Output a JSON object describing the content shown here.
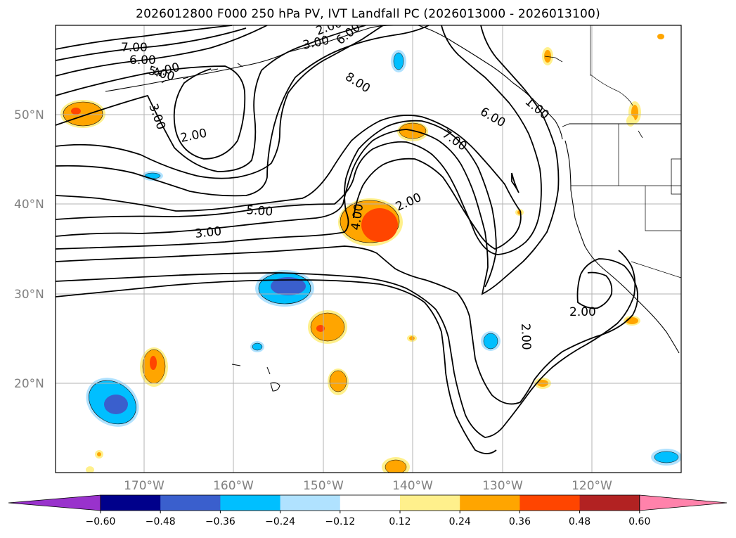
{
  "title": "2026012800 F000 250 hPa PV, IVT Landfall PC (2026013000 - 2026013100)",
  "map": {
    "lat_labels": [
      "50°N",
      "40°N",
      "30°N",
      "20°N"
    ],
    "lon_labels": [
      "170°W",
      "160°W",
      "150°W",
      "140°W",
      "130°W",
      "120°W"
    ],
    "contour_labels": [
      "7.00",
      "6.00",
      "5.00",
      "4.00",
      "3.00",
      "2.00",
      "2.00",
      "3.00",
      "8.00",
      "6.00",
      "7.00",
      "4.00",
      "2.00",
      "6.00",
      "5.00",
      "3.00",
      "2.00",
      "2.00",
      "1.00"
    ]
  },
  "colorbar": {
    "ticks": [
      "−0.60",
      "−0.48",
      "−0.36",
      "−0.24",
      "−0.12",
      "0.12",
      "0.24",
      "0.36",
      "0.48",
      "0.60"
    ],
    "colors": [
      "#9932cc",
      "#00008b",
      "#3a5fcd",
      "#00bfff",
      "#b0e2ff",
      "#ffffff",
      "#fff08c",
      "#ffa500",
      "#ff4500",
      "#b22222",
      "#ff82ab"
    ]
  }
}
